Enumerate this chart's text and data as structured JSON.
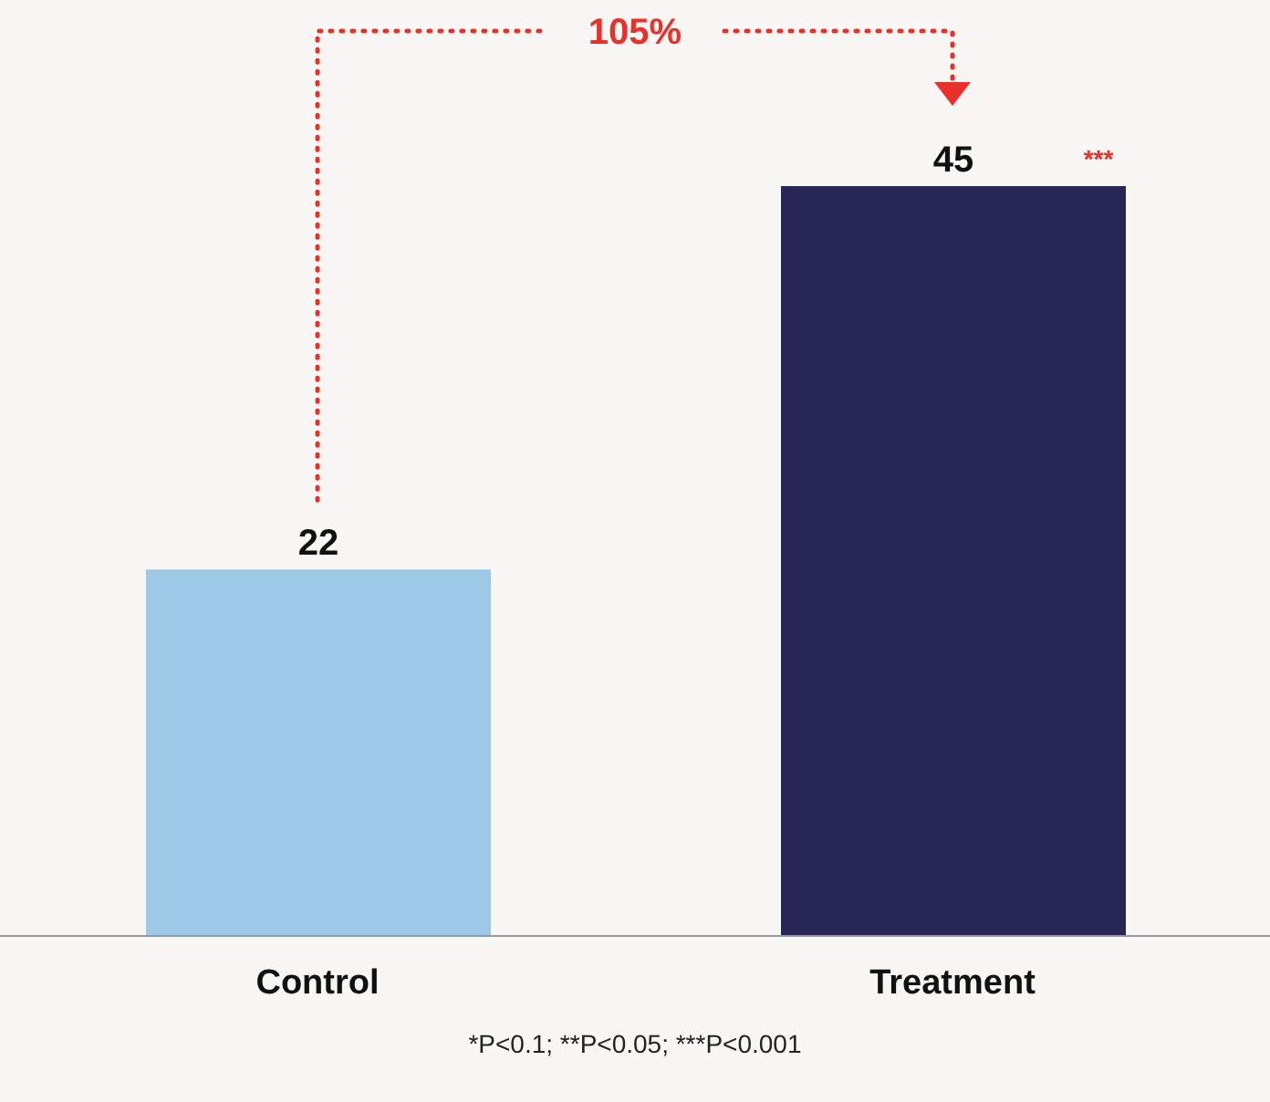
{
  "chart_data": {
    "type": "bar",
    "categories": [
      "Control",
      "Treatment"
    ],
    "values": [
      22,
      45
    ],
    "colors": [
      "#9dc8e6",
      "#272657"
    ],
    "data_labels": true,
    "grid": false,
    "annotations": [
      "105%",
      "***",
      "*P<0.1; **P<0.05; ***P<0.001"
    ]
  }
}
